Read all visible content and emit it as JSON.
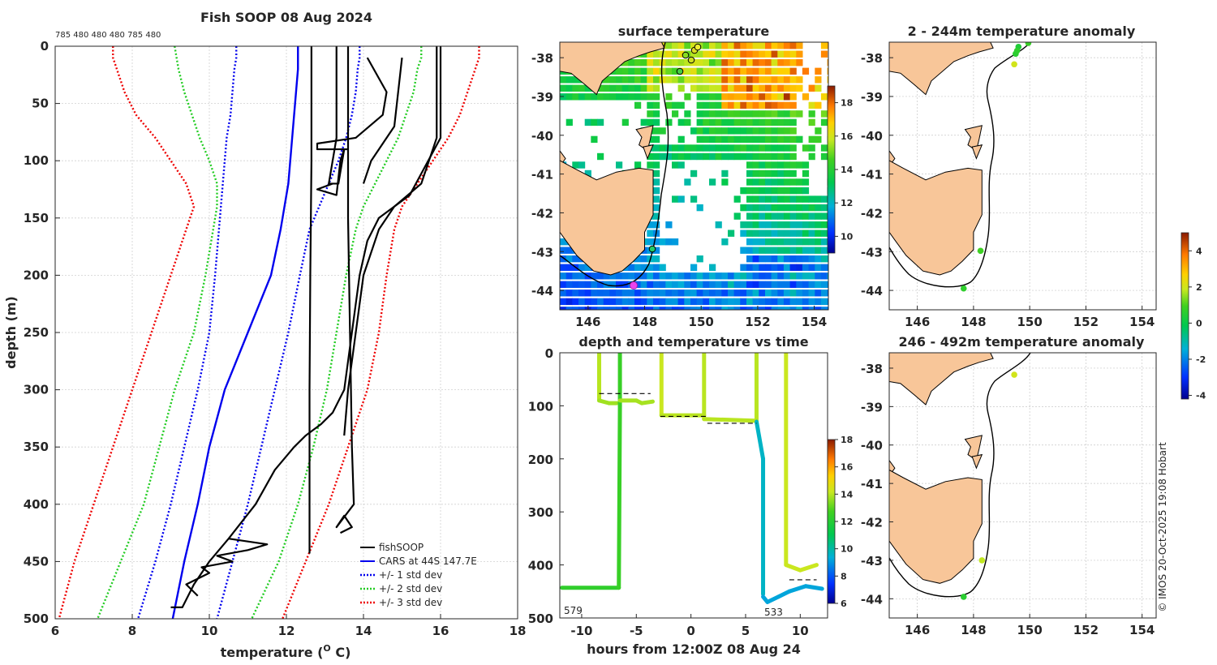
{
  "chart_data": [
    {
      "type": "line",
      "title": "Fish SOOP 08 Aug 2024",
      "xlabel": "temperature (° C)",
      "xlabel_text": "temperature (",
      "xlabel_sup": "O",
      "xlabel_end": " C)",
      "ylabel": "depth (m)",
      "xlim": [
        6,
        18
      ],
      "ylim": [
        0,
        500
      ],
      "y_reversed": true,
      "xticks": [
        6,
        8,
        10,
        12,
        14,
        16,
        18
      ],
      "yticks": [
        0,
        50,
        100,
        150,
        200,
        250,
        300,
        350,
        400,
        450,
        500
      ],
      "top_annotation": "785 480 480 480 785 480",
      "legend_position": "bottom-right",
      "legend": [
        "fishSOOP",
        "CARS at 44S 147.7E",
        "+/- 1 std dev",
        "+/- 2 std dev",
        "+/- 3 std dev"
      ],
      "colors": {
        "fishSOOP": "#000000",
        "cars": "#0000ee",
        "std1": "#0000ee",
        "std2": "#22cc22",
        "std3": "#ee0000"
      },
      "depths": [
        0,
        10,
        20,
        40,
        60,
        80,
        100,
        120,
        140,
        160,
        200,
        250,
        300,
        350,
        400,
        450,
        500
      ],
      "series": [
        {
          "name": "CARS at 44S 147.7E",
          "values": [
            12.3,
            12.3,
            12.3,
            12.25,
            12.2,
            12.15,
            12.1,
            12.05,
            11.95,
            11.85,
            11.6,
            11.0,
            10.4,
            10.0,
            9.7,
            9.35,
            9.05
          ]
        },
        {
          "name": "+1 std dev",
          "values": [
            13.9,
            13.9,
            13.85,
            13.8,
            13.7,
            13.55,
            13.35,
            13.1,
            12.85,
            12.6,
            12.35,
            12.05,
            11.7,
            11.35,
            11.0,
            10.6,
            10.2
          ]
        },
        {
          "name": "-1 std dev",
          "values": [
            10.7,
            10.7,
            10.65,
            10.6,
            10.55,
            10.45,
            10.4,
            10.35,
            10.3,
            10.25,
            10.15,
            10.0,
            9.7,
            9.35,
            9.0,
            8.6,
            8.15
          ]
        },
        {
          "name": "+2 std dev",
          "values": [
            15.5,
            15.5,
            15.4,
            15.3,
            15.1,
            14.9,
            14.6,
            14.3,
            14.0,
            13.8,
            13.55,
            13.3,
            13.05,
            12.7,
            12.3,
            11.8,
            11.1
          ]
        },
        {
          "name": "-2 std dev",
          "values": [
            9.1,
            9.15,
            9.2,
            9.35,
            9.55,
            9.75,
            10.0,
            10.2,
            10.2,
            10.1,
            9.9,
            9.6,
            9.1,
            8.7,
            8.3,
            7.7,
            7.1
          ]
        },
        {
          "name": "+3 std dev",
          "values": [
            17.0,
            17.0,
            16.9,
            16.7,
            16.5,
            16.2,
            15.8,
            15.4,
            15.0,
            14.8,
            14.6,
            14.4,
            14.1,
            13.6,
            13.1,
            12.5,
            11.9
          ]
        },
        {
          "name": "-3 std dev",
          "values": [
            7.5,
            7.5,
            7.6,
            7.8,
            8.1,
            8.6,
            9.0,
            9.4,
            9.6,
            9.4,
            9.0,
            8.5,
            8.0,
            7.5,
            7.0,
            6.5,
            6.1
          ]
        }
      ],
      "fish_profiles": [
        {
          "name": "fishSOOP 1",
          "points": [
            [
              12.65,
              0
            ],
            [
              12.65,
              100
            ],
            [
              12.62,
              200
            ],
            [
              12.6,
              300
            ],
            [
              12.6,
              400
            ],
            [
              12.6,
              443
            ]
          ]
        },
        {
          "name": "fishSOOP 2",
          "points": [
            [
              13.3,
              0
            ],
            [
              13.3,
              80
            ],
            [
              13.1,
              120
            ],
            [
              13.35,
              120
            ],
            [
              13.45,
              100
            ],
            [
              13.5,
              90
            ],
            [
              13.4,
              100
            ],
            [
              13.3,
              130
            ],
            [
              12.8,
              125
            ],
            [
              13.2,
              120
            ]
          ]
        },
        {
          "name": "fishSOOP 3",
          "points": [
            [
              13.6,
              0
            ],
            [
              13.6,
              150
            ],
            [
              13.65,
              250
            ],
            [
              13.7,
              350
            ],
            [
              13.75,
              400
            ],
            [
              13.3,
              420
            ],
            [
              13.5,
              410
            ],
            [
              13.7,
              420
            ],
            [
              13.4,
              425
            ]
          ]
        },
        {
          "name": "fishSOOP 4",
          "points": [
            [
              14.1,
              10
            ],
            [
              14.6,
              40
            ],
            [
              14.5,
              60
            ],
            [
              13.8,
              80
            ],
            [
              12.8,
              85
            ],
            [
              12.8,
              90
            ],
            [
              13.6,
              90
            ]
          ]
        },
        {
          "name": "fishSOOP 5",
          "points": [
            [
              15.0,
              10
            ],
            [
              14.9,
              40
            ],
            [
              14.8,
              70
            ],
            [
              14.2,
              100
            ],
            [
              14.0,
              120
            ]
          ]
        },
        {
          "name": "fishSOOP 6",
          "points": [
            [
              15.9,
              0
            ],
            [
              15.9,
              40
            ],
            [
              15.9,
              80
            ],
            [
              15.5,
              120
            ],
            [
              14.8,
              140
            ],
            [
              14.4,
              160
            ],
            [
              14.0,
              200
            ],
            [
              13.8,
              250
            ],
            [
              13.6,
              300
            ],
            [
              13.5,
              340
            ]
          ]
        },
        {
          "name": "fishSOOP 7",
          "points": [
            [
              16.0,
              0
            ],
            [
              16.0,
              80
            ],
            [
              15.2,
              130
            ],
            [
              14.4,
              150
            ],
            [
              14.1,
              170
            ],
            [
              13.9,
              200
            ],
            [
              13.7,
              250
            ],
            [
              13.5,
              300
            ],
            [
              13.2,
              320
            ],
            [
              12.9,
              330
            ],
            [
              12.5,
              340
            ],
            [
              12.2,
              350
            ],
            [
              11.7,
              370
            ],
            [
              11.2,
              400
            ],
            [
              10.5,
              430
            ],
            [
              10.0,
              450
            ],
            [
              9.6,
              470
            ],
            [
              9.3,
              490
            ],
            [
              9.0,
              490
            ]
          ]
        },
        {
          "name": "fishSOOP 8",
          "points": [
            [
              10.5,
              430
            ],
            [
              11.5,
              435
            ],
            [
              11.0,
              440
            ],
            [
              10.2,
              445
            ],
            [
              10.6,
              450
            ],
            [
              9.8,
              455
            ],
            [
              10.0,
              460
            ],
            [
              9.4,
              470
            ],
            [
              9.7,
              480
            ]
          ]
        }
      ]
    },
    {
      "type": "heatmap",
      "title": "surface temperature",
      "xlim": [
        145,
        154.5
      ],
      "ylim": [
        -44.5,
        -37.6
      ],
      "xticks": [
        146,
        148,
        150,
        152,
        154
      ],
      "yticks": [
        -38,
        -39,
        -40,
        -41,
        -42,
        -43,
        -44
      ],
      "colorbar": {
        "min": 9,
        "max": 19,
        "ticks": [
          10,
          12,
          14,
          16,
          18
        ]
      }
    },
    {
      "type": "scatter",
      "title": "depth and temperature vs time",
      "xlabel": "hours from 12:00Z 08 Aug 24",
      "ylabel": "",
      "xlim": [
        -12,
        12.5
      ],
      "ylim": [
        0,
        500
      ],
      "y_reversed": true,
      "xticks": [
        -10,
        -5,
        0,
        5,
        10
      ],
      "yticks": [
        0,
        100,
        200,
        300,
        400,
        500
      ],
      "annotations": [
        "579",
        "533"
      ],
      "colorbar": {
        "min": 6,
        "max": 18,
        "ticks": [
          6,
          8,
          10,
          12,
          14,
          16,
          18
        ]
      }
    },
    {
      "type": "scatter",
      "title": "2 - 244m temperature anomaly",
      "xlim": [
        145,
        154.5
      ],
      "ylim": [
        -44.5,
        -37.6
      ],
      "xticks": [
        146,
        148,
        150,
        152,
        154
      ],
      "yticks": [
        -38,
        -39,
        -40,
        -41,
        -42,
        -43,
        -44
      ],
      "points": [
        {
          "lon": 149.5,
          "lat": -37.9,
          "anomaly": 0.5
        },
        {
          "lon": 149.6,
          "lat": -37.72,
          "anomaly": 0.3
        },
        {
          "lon": 149.55,
          "lat": -37.82,
          "anomaly": 0.6
        },
        {
          "lon": 149.95,
          "lat": -37.62,
          "anomaly": 0.8
        },
        {
          "lon": 149.45,
          "lat": -38.17,
          "anomaly": 2.2
        },
        {
          "lon": 148.25,
          "lat": -42.98,
          "anomaly": 0.9
        },
        {
          "lon": 147.65,
          "lat": -43.95,
          "anomaly": 0.6
        }
      ]
    },
    {
      "type": "scatter",
      "title": "246 - 492m temperature anomaly",
      "xlim": [
        145,
        154.5
      ],
      "ylim": [
        -44.5,
        -37.6
      ],
      "xticks": [
        146,
        148,
        150,
        152,
        154
      ],
      "yticks": [
        -38,
        -39,
        -40,
        -41,
        -42,
        -43,
        -44
      ],
      "points": [
        {
          "lon": 149.45,
          "lat": -38.17,
          "anomaly": 2.2
        },
        {
          "lon": 148.3,
          "lat": -43.0,
          "anomaly": 2.0
        },
        {
          "lon": 147.65,
          "lat": -43.95,
          "anomaly": 0.5
        }
      ],
      "colorbar": {
        "min": -4.2,
        "max": 5.0,
        "ticks": [
          -4,
          -2,
          0,
          2,
          4
        ]
      }
    }
  ],
  "credit": "© IMOS 20-Oct-2025 19:08 Hobart"
}
